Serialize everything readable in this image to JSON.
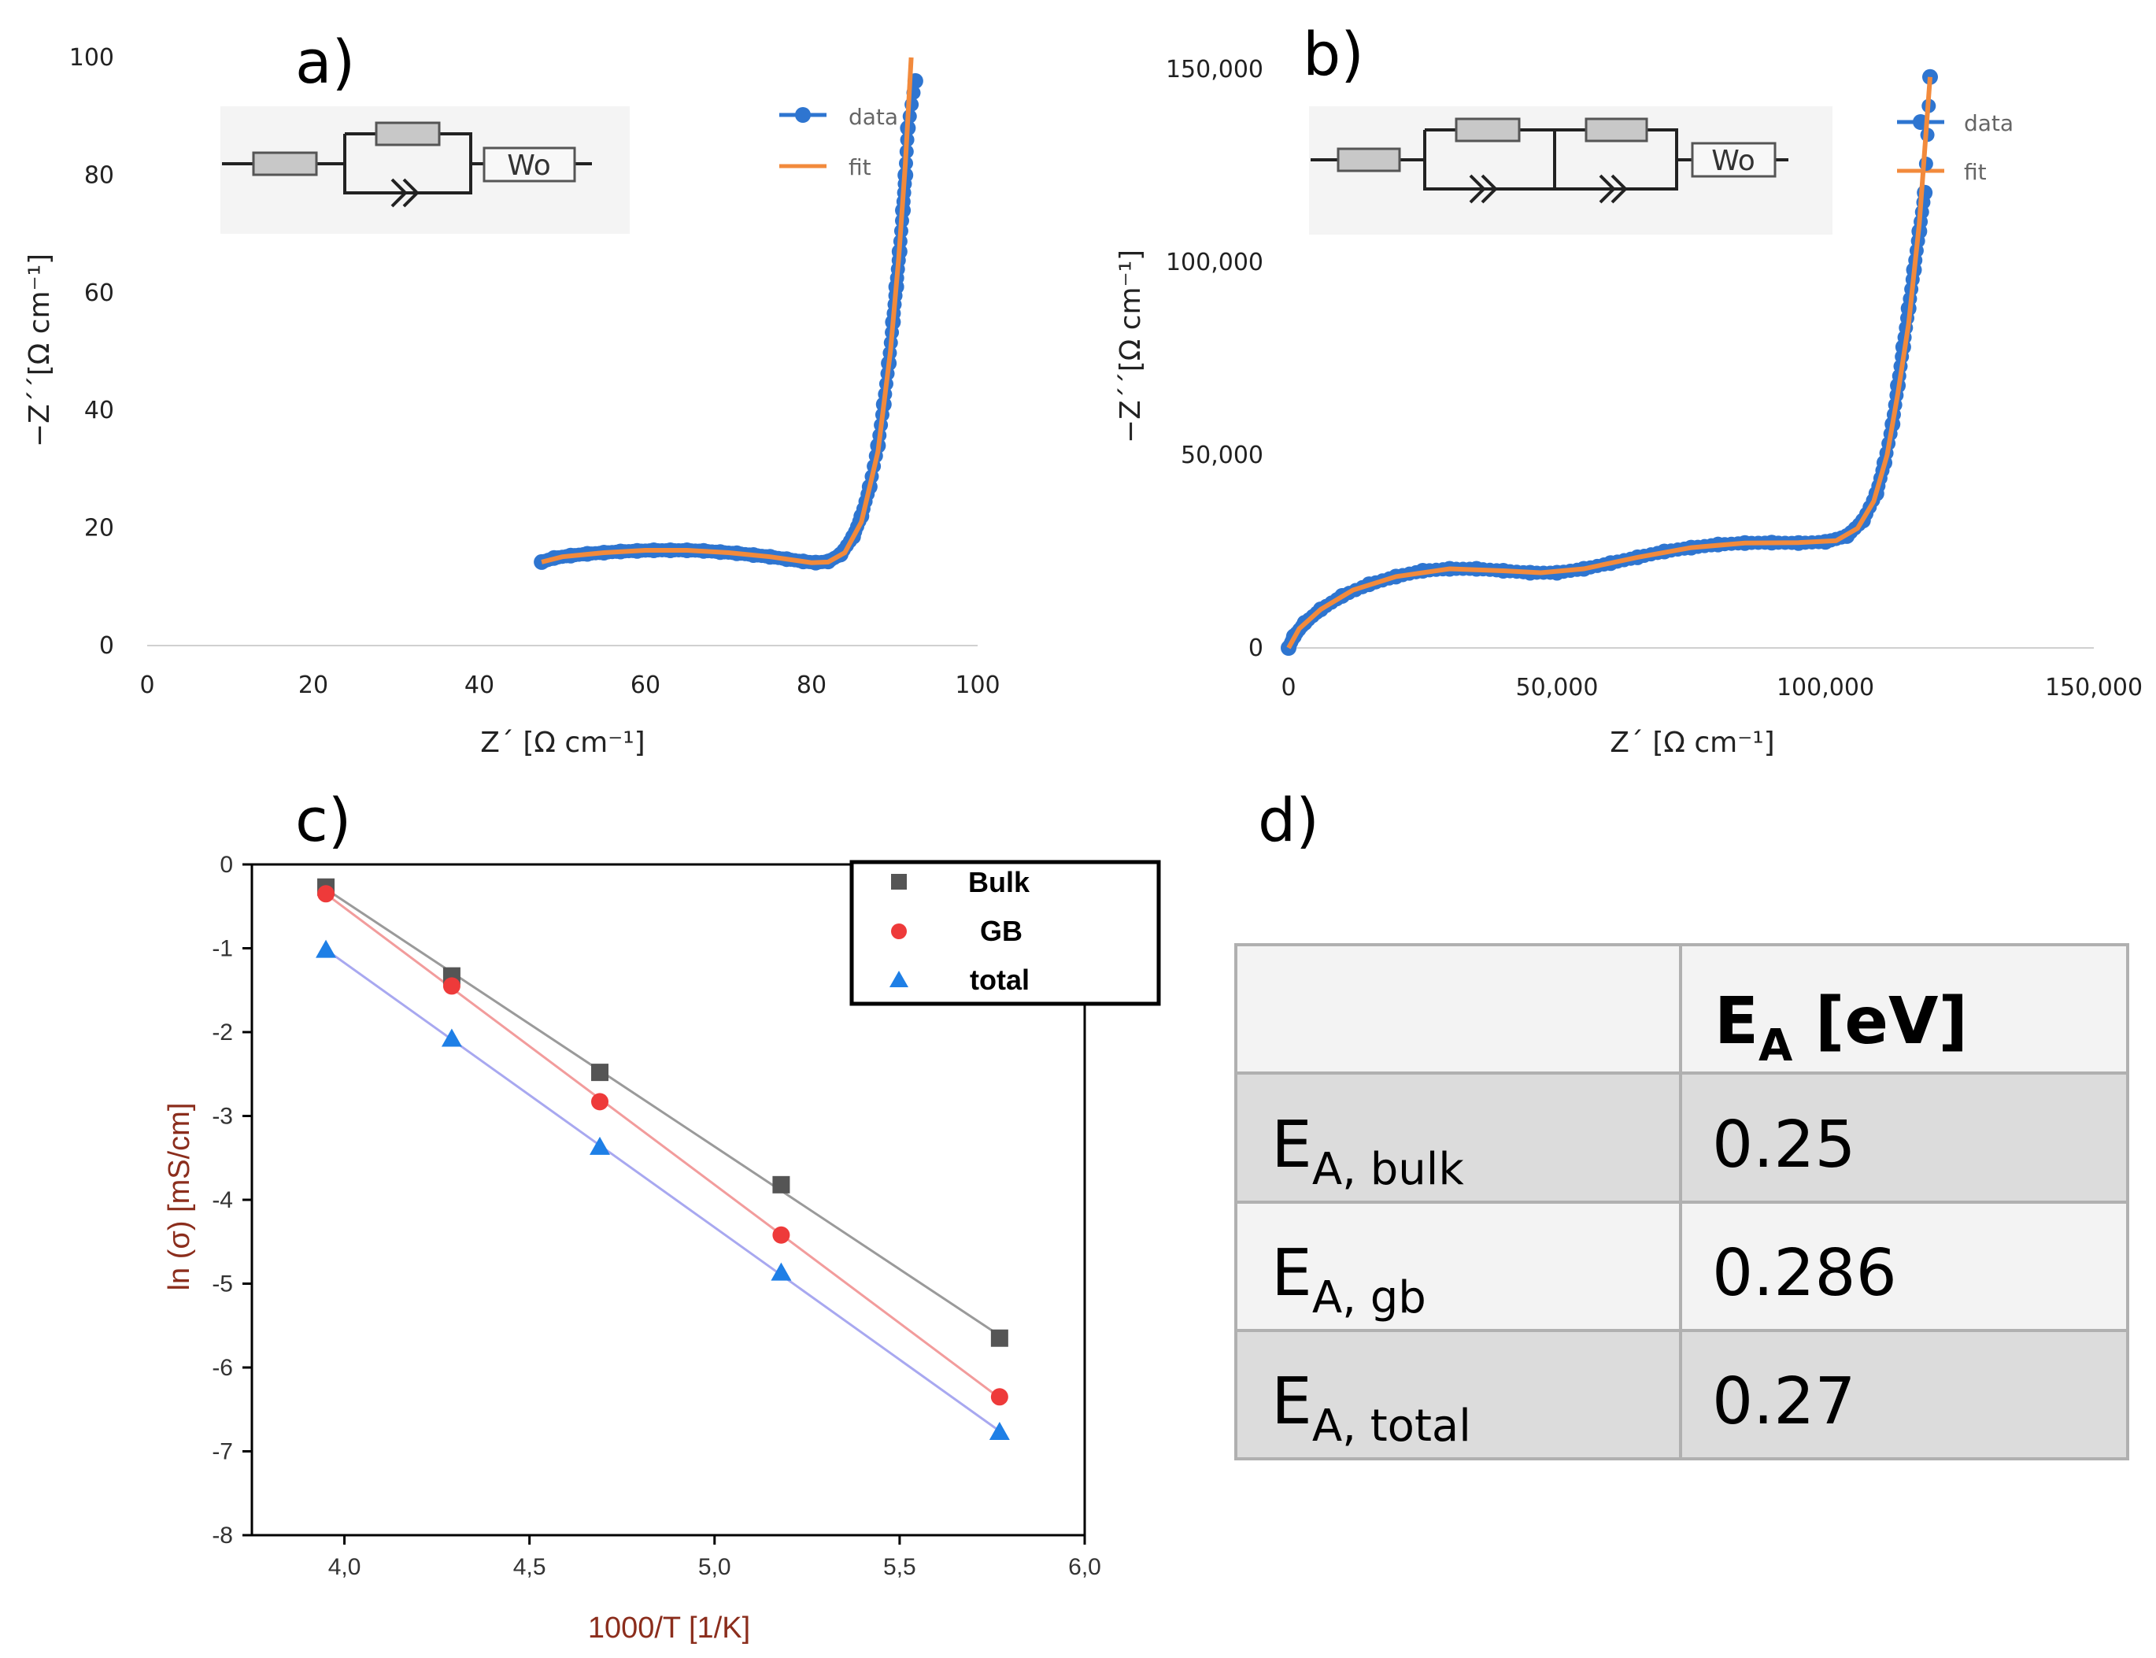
{
  "colors": {
    "data_blue": "#2E75D0",
    "fit_orange": "#F28A3C",
    "bulk": "#555555",
    "gb": "#EE3A3A",
    "total": "#1E7FE6",
    "bulk_line": "#9A9A9A",
    "gb_line": "#F29C9C",
    "total_line": "#A8A8F0"
  },
  "panels": {
    "a": {
      "label": "a)",
      "circuit_element": "Wo"
    },
    "b": {
      "label": "b)",
      "circuit_element": "Wo"
    },
    "c": {
      "label": "c)"
    },
    "d": {
      "label": "d)"
    }
  },
  "chart_data": [
    {
      "id": "a",
      "type": "scatter",
      "title": "a)",
      "xlabel": "Z´ [Ω cm⁻¹]",
      "ylabel": "−Z´´[Ω cm⁻¹]",
      "xlim": [
        0,
        100
      ],
      "ylim": [
        0,
        100
      ],
      "xticks": [
        0,
        20,
        40,
        60,
        80,
        100
      ],
      "xtick_labels": [
        "0",
        "20",
        "40",
        "60",
        "80",
        "100"
      ],
      "yticks": [
        0,
        20,
        40,
        60,
        80,
        100
      ],
      "ytick_labels": [
        "0",
        "20",
        "40",
        "60",
        "80",
        "100"
      ],
      "legend": [
        "data",
        "fit"
      ],
      "series": [
        {
          "name": "data",
          "marker": "circle",
          "x": [
            47.5,
            49,
            51,
            53,
            55,
            57,
            59,
            61,
            63,
            65,
            67,
            69,
            71,
            73,
            75,
            77,
            79,
            80.5,
            82,
            83.5,
            85,
            86,
            87,
            88,
            88.7,
            89.3,
            89.8,
            90.2,
            90.6,
            91,
            91.3,
            91.6,
            92.5
          ],
          "y": [
            14.2,
            14.9,
            15.3,
            15.6,
            15.8,
            16,
            16.1,
            16.2,
            16.2,
            16.2,
            16.1,
            15.9,
            15.7,
            15.4,
            15.1,
            14.7,
            14.3,
            14.1,
            14.3,
            15.5,
            18.5,
            22,
            27,
            34,
            41,
            48,
            55,
            61,
            67,
            74,
            80,
            88,
            96
          ]
        },
        {
          "name": "fit",
          "x": [
            47.5,
            50,
            55,
            60,
            65,
            70,
            75,
            80,
            82,
            84,
            86,
            88,
            89.5,
            90.5,
            91.3,
            92
          ],
          "y": [
            14.2,
            15.1,
            15.8,
            16.2,
            16.2,
            15.8,
            15.1,
            14.1,
            14.2,
            15.8,
            21,
            33,
            50,
            66,
            82,
            100
          ]
        }
      ]
    },
    {
      "id": "b",
      "type": "scatter",
      "title": "b)",
      "xlabel": "Z´ [Ω cm⁻¹]",
      "ylabel": "−Z´´[Ω cm⁻¹]",
      "xlim": [
        0,
        150000
      ],
      "ylim": [
        0,
        150000
      ],
      "xticks": [
        0,
        50000,
        100000,
        150000
      ],
      "xtick_labels": [
        "0",
        "50,000",
        "100,000",
        "150,000"
      ],
      "yticks": [
        0,
        50000,
        100000,
        150000
      ],
      "ytick_labels": [
        "0",
        "50,000",
        "100,000",
        "150,000"
      ],
      "legend": [
        "data",
        "fit"
      ],
      "series": [
        {
          "name": "data",
          "marker": "circle",
          "x": [
            0,
            1000,
            3000,
            6000,
            10000,
            15000,
            20000,
            25000,
            30000,
            35000,
            40000,
            45000,
            50000,
            55000,
            60000,
            65000,
            70000,
            75000,
            80000,
            85000,
            90000,
            95000,
            100000,
            104000,
            107000,
            109500,
            111000,
            112500,
            113500,
            114500,
            115500,
            116500,
            117500,
            118500,
            119500
          ],
          "y": [
            0,
            3000,
            6500,
            10000,
            13500,
            16500,
            18500,
            20000,
            20500,
            20500,
            20000,
            19500,
            19500,
            20500,
            22000,
            23500,
            25000,
            26000,
            26800,
            27200,
            27300,
            27200,
            27500,
            29000,
            33000,
            40000,
            48000,
            58000,
            68000,
            78000,
            88000,
            98000,
            108000,
            118000,
            148000
          ]
        },
        {
          "name": "fit",
          "x": [
            0,
            2000,
            6000,
            12000,
            20000,
            30000,
            40000,
            47000,
            55000,
            65000,
            75000,
            85000,
            95000,
            102000,
            106000,
            109000,
            111500,
            113500,
            115500,
            117500,
            119500
          ],
          "y": [
            0,
            5000,
            10000,
            15000,
            18500,
            20500,
            20000,
            19500,
            20500,
            23500,
            26000,
            27200,
            27300,
            27800,
            31000,
            38000,
            50000,
            66000,
            84000,
            110000,
            148000
          ]
        }
      ]
    },
    {
      "id": "c",
      "type": "scatter",
      "title": "c)",
      "xlabel": "1000/T [1/K]",
      "ylabel": "ln (σ) [mS/cm]",
      "xlim": [
        3.75,
        6.0
      ],
      "ylim": [
        -8,
        0
      ],
      "xticks": [
        4.0,
        4.5,
        5.0,
        5.5,
        6.0
      ],
      "xtick_labels": [
        "4,0",
        "4,5",
        "5,0",
        "5,5",
        "6,0"
      ],
      "yticks": [
        0,
        -1,
        -2,
        -3,
        -4,
        -5,
        -6,
        -7,
        -8
      ],
      "ytick_labels": [
        "0",
        "-1",
        "-2",
        "-3",
        "-4",
        "-5",
        "-6",
        "-7",
        "-8"
      ],
      "legend": [
        "Bulk",
        "GB",
        "total"
      ],
      "series": [
        {
          "name": "Bulk",
          "marker": "square",
          "x": [
            3.95,
            4.29,
            4.69,
            5.18,
            5.77
          ],
          "y": [
            -0.27,
            -1.33,
            -2.48,
            -3.82,
            -5.65
          ]
        },
        {
          "name": "GB",
          "marker": "circle",
          "x": [
            3.95,
            4.29,
            4.69,
            5.18,
            5.77
          ],
          "y": [
            -0.35,
            -1.45,
            -2.83,
            -4.42,
            -6.35
          ]
        },
        {
          "name": "total",
          "marker": "triangle",
          "x": [
            3.95,
            4.29,
            4.69,
            5.18,
            5.77
          ],
          "y": [
            -1.02,
            -2.08,
            -3.37,
            -4.87,
            -6.77
          ]
        }
      ]
    },
    {
      "id": "d",
      "type": "table",
      "title": "d)",
      "header": {
        "main": "E",
        "sub": "A",
        "unit": " [eV]"
      },
      "rows": [
        {
          "main": "E",
          "sub": "A, bulk",
          "value": "0.25"
        },
        {
          "main": "E",
          "sub": "A, gb",
          "value": "0.286"
        },
        {
          "main": "E",
          "sub": "A, total",
          "value": "0.27"
        }
      ]
    }
  ]
}
